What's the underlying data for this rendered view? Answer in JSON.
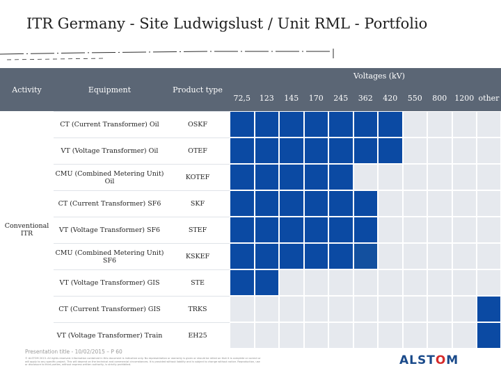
{
  "title": "ITR Germany  -  Site Ludwigslust  / Unit RML - Portfolio",
  "colors": {
    "header_bg": "#5b6675",
    "filled": "#0b4aa3",
    "filled_alt": "#13509f",
    "grid": "#e6e9ee",
    "row_line": "#ffffff"
  },
  "table": {
    "headers": {
      "activity": "Activity",
      "equipment": "Equipment",
      "product_type": "Product type",
      "voltages": "Voltages (kV)"
    },
    "voltage_columns": [
      "72,5",
      "123",
      "145",
      "170",
      "245",
      "362",
      "420",
      "550",
      "800",
      "1200",
      "other"
    ],
    "activity_group": "Conventional\nITR",
    "rows": [
      {
        "equipment": "CT (Current Transformer) Oil",
        "product_type": "OSKF",
        "filled": [
          true,
          true,
          true,
          true,
          true,
          true,
          true,
          false,
          false,
          false,
          false
        ]
      },
      {
        "equipment": "VT (Voltage Transformer) Oil",
        "product_type": "OTEF",
        "filled": [
          true,
          true,
          true,
          true,
          true,
          true,
          true,
          false,
          false,
          false,
          false
        ]
      },
      {
        "equipment": "CMU (Combined Metering Unit) Oil",
        "product_type": "KOTEF",
        "filled": [
          true,
          true,
          true,
          true,
          true,
          false,
          false,
          false,
          false,
          false,
          false
        ]
      },
      {
        "equipment": "CT (Current Transformer) SF6",
        "product_type": "SKF",
        "filled": [
          true,
          true,
          true,
          true,
          true,
          true,
          false,
          false,
          false,
          false,
          false
        ]
      },
      {
        "equipment": "VT (Voltage Transformer) SF6",
        "product_type": "STEF",
        "filled": [
          true,
          true,
          true,
          true,
          true,
          true,
          false,
          false,
          false,
          false,
          false
        ]
      },
      {
        "equipment": "CMU (Combined Metering Unit) SF6",
        "product_type": "KSKEF",
        "filled": [
          true,
          true,
          true,
          true,
          true,
          "alt",
          false,
          false,
          false,
          false,
          false
        ]
      },
      {
        "equipment": "VT (Voltage Transformer) GIS",
        "product_type": "STE",
        "filled": [
          true,
          true,
          false,
          false,
          false,
          false,
          false,
          false,
          false,
          false,
          false
        ]
      },
      {
        "equipment": "CT (Current Transformer) GIS",
        "product_type": "TRKS",
        "filled": [
          false,
          false,
          false,
          false,
          false,
          false,
          false,
          false,
          false,
          false,
          true
        ]
      },
      {
        "equipment": "VT (Voltage Transformer) Train",
        "product_type": "EH25",
        "filled": [
          false,
          false,
          false,
          false,
          false,
          false,
          false,
          false,
          false,
          false,
          true
        ]
      }
    ]
  },
  "footer": {
    "presentation": "Presentation title - 10/02/2015 – P 60",
    "legal": "© ALSTOM 2013. All rights reserved. Information contained in this document is indicative only. No representation or warranty is given or should be relied on that it is complete or correct or will apply to any specific project. This will depend on the technical and commercial circumstances. It is provided without liability and is subject to change without notice. Reproduction, use or disclosure to third parties, without express written authority, is strictly prohibited.",
    "logo_pre": "ALST",
    "logo_o": "O",
    "logo_post": "M"
  }
}
